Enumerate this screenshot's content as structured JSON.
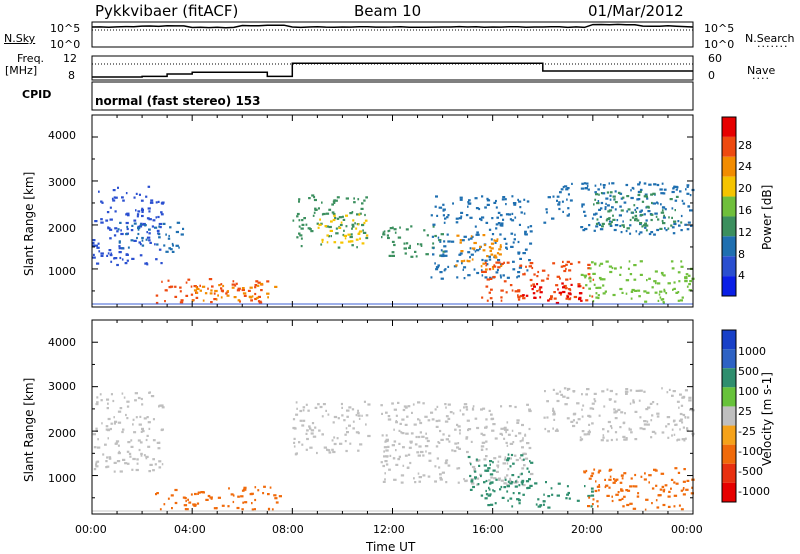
{
  "header": {
    "station": "Pykkvibaer (fitACF)",
    "beam": "Beam 10",
    "date": "01/Mar/2012"
  },
  "strips": {
    "nsky_label": "N.Sky",
    "nsearch_label": "N.Search",
    "noise_ticks_left": [
      "10^5",
      "10^0"
    ],
    "noise_ticks_right": [
      "10^5",
      "10^0"
    ],
    "freq_label_line1": "Freq.",
    "freq_label_line2": "[MHz]",
    "freq_ticks": [
      "12",
      "8"
    ],
    "nave_label": "Nave",
    "nave_ticks": [
      "60",
      "0"
    ],
    "cpid_label": "CPID",
    "cpid_value": "normal (fast stereo) 153"
  },
  "colors": {
    "power": [
      "#0a1fe6",
      "#2a4fd0",
      "#1f6fb0",
      "#3b8f5e",
      "#6fbf3b",
      "#f5c400",
      "#f28c00",
      "#ee4a10",
      "#e60000"
    ],
    "velocity": [
      "#1840c8",
      "#2e62c4",
      "#2f8e6e",
      "#67c23a",
      "#bfbfbf",
      "#f5a21a",
      "#f06a0a",
      "#e83010",
      "#e60000"
    ]
  },
  "chart_data": [
    {
      "type": "line",
      "title": "",
      "series": [
        {
          "name": "N.Sky",
          "x": [
            "00:00",
            "02:00",
            "04:00",
            "06:00",
            "08:00",
            "10:00",
            "12:00",
            "14:00",
            "16:00",
            "18:00",
            "20:00",
            "22:00",
            "00:00"
          ],
          "values": [
            10000,
            15000,
            8000,
            20000,
            10000,
            10000,
            10000,
            10000,
            10000,
            10000,
            30000,
            15000,
            10000
          ]
        }
      ],
      "ylim": [
        1,
        100000
      ]
    },
    {
      "type": "line",
      "title": "",
      "series": [
        {
          "name": "Freq.",
          "x": [
            "00:00",
            "02:00",
            "03:00",
            "04:00",
            "07:00",
            "08:00",
            "12:00",
            "18:00",
            "20:00",
            "00:00"
          ],
          "values": [
            8.5,
            8.6,
            9.0,
            9.3,
            8.6,
            10.8,
            10.8,
            9.5,
            9.5,
            9.5
          ]
        }
      ],
      "ylabel": "[MHz]",
      "ylim": [
        8,
        12
      ]
    },
    {
      "type": "heatmap",
      "xlabel": "",
      "ylabel": "Slant Range [km]",
      "xticks": [
        "00:00",
        "04:00",
        "08:00",
        "12:00",
        "16:00",
        "20:00",
        "00:00"
      ],
      "yticks": [
        "1000",
        "2000",
        "3000",
        "4000"
      ],
      "ylim": [
        180,
        4500
      ],
      "colorbar_label": "Power [dB]",
      "colorbar_ticks": [
        "28",
        "24",
        "20",
        "16",
        "12",
        "8",
        "4"
      ],
      "clim": [
        0,
        32
      ],
      "regions": [
        {
          "t0": 0.0,
          "t1": 2.8,
          "r0": 1100,
          "r1": 2900,
          "value": 6
        },
        {
          "t0": 1.0,
          "t1": 3.6,
          "r0": 1400,
          "r1": 2100,
          "value": 10
        },
        {
          "t0": 2.5,
          "t1": 7.0,
          "r0": 250,
          "r1": 800,
          "value": 27
        },
        {
          "t0": 4.0,
          "t1": 7.5,
          "r0": 300,
          "r1": 700,
          "value": 22
        },
        {
          "t0": 8.0,
          "t1": 11.0,
          "r0": 1500,
          "r1": 2700,
          "value": 12
        },
        {
          "t0": 9.0,
          "t1": 11.0,
          "r0": 1600,
          "r1": 2300,
          "value": 20
        },
        {
          "t0": 11.5,
          "t1": 14.0,
          "r0": 1300,
          "r1": 2000,
          "value": 14
        },
        {
          "t0": 13.5,
          "t1": 17.5,
          "r0": 800,
          "r1": 2700,
          "value": 10
        },
        {
          "t0": 14.5,
          "t1": 16.5,
          "r0": 1000,
          "r1": 1800,
          "value": 22
        },
        {
          "t0": 15.5,
          "t1": 20.0,
          "r0": 300,
          "r1": 1200,
          "value": 26
        },
        {
          "t0": 17.0,
          "t1": 19.5,
          "r0": 250,
          "r1": 700,
          "value": 30
        },
        {
          "t0": 18.0,
          "t1": 24.0,
          "r0": 1800,
          "r1": 3000,
          "value": 9
        },
        {
          "t0": 20.0,
          "t1": 23.5,
          "r0": 1900,
          "r1": 2800,
          "value": 13
        },
        {
          "t0": 19.5,
          "t1": 24.0,
          "r0": 250,
          "r1": 1200,
          "value": 16
        }
      ]
    },
    {
      "type": "heatmap",
      "xlabel": "Time UT",
      "ylabel": "Slant Range [km]",
      "xticks": [
        "00:00",
        "04:00",
        "08:00",
        "12:00",
        "16:00",
        "20:00",
        "00:00"
      ],
      "yticks": [
        "1000",
        "2000",
        "3000",
        "4000"
      ],
      "ylim": [
        180,
        4500
      ],
      "colorbar_label": "Velocity [m s-1]",
      "colorbar_ticks": [
        "1000",
        "500",
        "100",
        "25",
        "-25",
        "-100",
        "-500",
        "-1000"
      ],
      "clim": [
        -1200,
        1200
      ],
      "regions": [
        {
          "t0": 0.0,
          "t1": 2.8,
          "r0": 1100,
          "r1": 2900,
          "value": 0
        },
        {
          "t0": 2.5,
          "t1": 7.5,
          "r0": 250,
          "r1": 800,
          "value": -300
        },
        {
          "t0": 8.0,
          "t1": 11.0,
          "r0": 1500,
          "r1": 2700,
          "value": 0
        },
        {
          "t0": 11.5,
          "t1": 17.5,
          "r0": 800,
          "r1": 2700,
          "value": 0
        },
        {
          "t0": 15.0,
          "t1": 17.5,
          "r0": 700,
          "r1": 1500,
          "value": 400
        },
        {
          "t0": 15.5,
          "t1": 20.0,
          "r0": 300,
          "r1": 900,
          "value": 150
        },
        {
          "t0": 18.0,
          "t1": 24.0,
          "r0": 1800,
          "r1": 3000,
          "value": 0
        },
        {
          "t0": 19.5,
          "t1": 24.0,
          "r0": 250,
          "r1": 1200,
          "value": -200
        }
      ]
    }
  ]
}
